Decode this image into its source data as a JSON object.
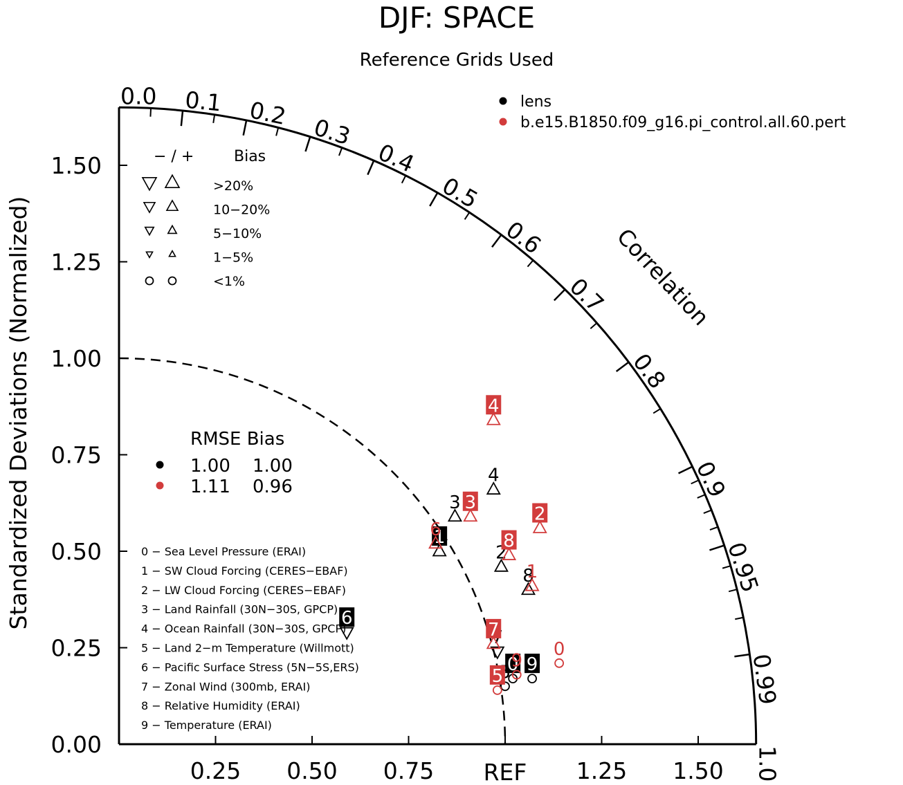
{
  "chart_data": {
    "type": "scatter",
    "title": "DJF: SPACE",
    "subtitle": "Reference Grids Used",
    "ylabel": "Standardized Deviations (Normalized)",
    "arc_label": "Correlation",
    "ref_label": "REF",
    "xlim": [
      0,
      1.65
    ],
    "ylim": [
      0,
      1.65
    ],
    "x_ticks": [
      "0.25",
      "0.50",
      "0.75",
      "1.25",
      "1.50"
    ],
    "x_tick_values": [
      0.25,
      0.5,
      0.75,
      1.25,
      1.5
    ],
    "y_ticks": [
      "0.00",
      "0.25",
      "0.50",
      "0.75",
      "1.00",
      "1.25",
      "1.50"
    ],
    "y_tick_values": [
      0,
      0.25,
      0.5,
      0.75,
      1.0,
      1.25,
      1.5
    ],
    "correlation_labels": [
      "0.0",
      "0.1",
      "0.2",
      "0.3",
      "0.4",
      "0.5",
      "0.6",
      "0.7",
      "0.8",
      "0.9",
      "0.95",
      "0.99",
      "1.0"
    ],
    "correlation_values": [
      0.0,
      0.1,
      0.2,
      0.3,
      0.4,
      0.5,
      0.6,
      0.7,
      0.8,
      0.9,
      0.95,
      0.99,
      1.0
    ],
    "correlation_minor_ticks": [
      0.05,
      0.15,
      0.25,
      0.35,
      0.45,
      0.55,
      0.65,
      0.75,
      0.85,
      0.91,
      0.92,
      0.93,
      0.94,
      0.96,
      0.97,
      0.98
    ],
    "reference_circle_radius": 1.0,
    "outer_radius": 1.65,
    "legend_models": [
      {
        "name": "lens",
        "color": "#000000"
      },
      {
        "name": "b.e15.B1850.f09_g16.pi_control.all.60.pert",
        "color": "#d23c3c"
      }
    ],
    "bias_legend": {
      "header_signs": "−  /  +",
      "header_label": "Bias",
      "rows": [
        {
          "label": ">20%",
          "size": 1.0
        },
        {
          "label": "10−20%",
          "size": 0.8
        },
        {
          "label": "5−10%",
          "size": 0.62
        },
        {
          "label": "1−5%",
          "size": 0.45
        },
        {
          "label": "<1%",
          "size": 0.0
        }
      ]
    },
    "rmse_table": {
      "header": "RMSE Bias",
      "rows": [
        {
          "rmse": "1.00",
          "bias": "1.00",
          "color": "#000000"
        },
        {
          "rmse": "1.11",
          "bias": "0.96",
          "color": "#d23c3c"
        }
      ]
    },
    "variables": [
      "0 − Sea Level Pressure (ERAI)",
      "1 − SW Cloud Forcing (CERES−EBAF)",
      "2 − LW Cloud Forcing (CERES−EBAF)",
      "3 − Land Rainfall (30N−30S, GPCP)",
      "4 − Ocean Rainfall (30N−30S, GPCP)",
      "5 − Land 2−m Temperature (Willmott)",
      "6 − Pacific Surface Stress (5N−5S,ERS)",
      "7 − Zonal Wind (300mb, ERAI)",
      "8 − Relative Humidity (ERAI)",
      "9 − Temperature (ERAI)"
    ],
    "series": [
      {
        "name": "lens",
        "color": "#000000",
        "points": [
          {
            "id": "0",
            "x": 1.02,
            "y": 0.17,
            "marker": "circle",
            "boxed": true
          },
          {
            "id": "1",
            "x": 0.83,
            "y": 0.5,
            "marker": "up",
            "boxed": true
          },
          {
            "id": "2",
            "x": 0.99,
            "y": 0.46,
            "marker": "up",
            "boxed": false
          },
          {
            "id": "3",
            "x": 0.87,
            "y": 0.59,
            "marker": "up",
            "boxed": false
          },
          {
            "id": "4",
            "x": 0.97,
            "y": 0.66,
            "marker": "up",
            "boxed": false
          },
          {
            "id": "5",
            "x": 1.0,
            "y": 0.15,
            "marker": "circle",
            "boxed": false
          },
          {
            "id": "6",
            "x": 0.59,
            "y": 0.29,
            "marker": "down",
            "boxed": true
          },
          {
            "id": "7",
            "x": 0.98,
            "y": 0.24,
            "marker": "down",
            "boxed": false
          },
          {
            "id": "8",
            "x": 1.06,
            "y": 0.4,
            "marker": "up",
            "boxed": false
          },
          {
            "id": "9",
            "x": 1.07,
            "y": 0.17,
            "marker": "circle",
            "boxed": true
          }
        ]
      },
      {
        "name": "b.e15.B1850.f09_g16.pi_control.all.60.pert",
        "color": "#d23c3c",
        "points": [
          {
            "id": "0",
            "x": 1.14,
            "y": 0.21,
            "marker": "circle",
            "boxed": false
          },
          {
            "id": "1",
            "x": 1.07,
            "y": 0.41,
            "marker": "up",
            "boxed": false
          },
          {
            "id": "2",
            "x": 1.09,
            "y": 0.56,
            "marker": "up",
            "boxed": true
          },
          {
            "id": "3",
            "x": 0.91,
            "y": 0.59,
            "marker": "up",
            "boxed": true
          },
          {
            "id": "4",
            "x": 0.97,
            "y": 0.84,
            "marker": "up",
            "boxed": true
          },
          {
            "id": "5",
            "x": 0.98,
            "y": 0.14,
            "marker": "circle",
            "boxed": true
          },
          {
            "id": "6",
            "x": 0.82,
            "y": 0.52,
            "marker": "up",
            "boxed": false
          },
          {
            "id": "7",
            "x": 0.97,
            "y": 0.26,
            "marker": "up",
            "boxed": true
          },
          {
            "id": "8",
            "x": 1.01,
            "y": 0.49,
            "marker": "up",
            "boxed": true
          },
          {
            "id": "9",
            "x": 1.03,
            "y": 0.18,
            "marker": "circle",
            "boxed": false
          }
        ]
      }
    ]
  }
}
